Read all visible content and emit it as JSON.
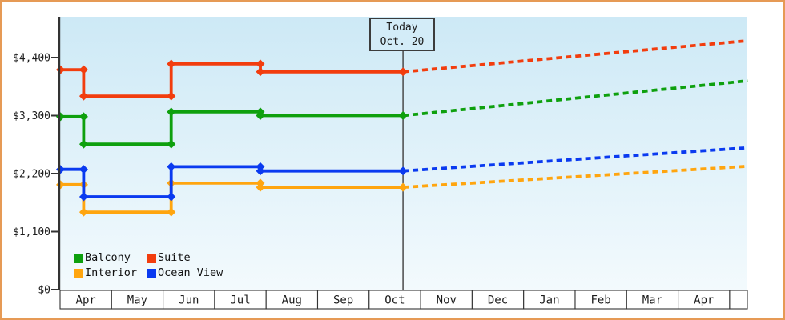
{
  "colors": {
    "frame_border": "#e69a55",
    "plot_bg_top": "#cde9f6",
    "plot_bg_bottom": "#f3fafd",
    "axis": "#333333",
    "text": "#1c1c1c",
    "today_line": "#4a4a4a",
    "month_cell_bg": "#ffffff"
  },
  "today_marker": {
    "line1": "Today",
    "line2": "Oct. 20",
    "month_pos": 6.65
  },
  "chart_data": {
    "type": "line",
    "title": "",
    "xlabel": "",
    "ylabel": "",
    "x_categories": [
      "Apr",
      "May",
      "Jun",
      "Jul",
      "Aug",
      "Sep",
      "Oct",
      "Nov",
      "Dec",
      "Jan",
      "Feb",
      "Mar",
      "Apr"
    ],
    "x_range_months": [
      0,
      13.34
    ],
    "ylim": [
      0,
      5175
    ],
    "grid": false,
    "legend_position": "bottom-left",
    "y_ticks": [
      {
        "label": "$4,400",
        "value": 4400
      },
      {
        "label": "$3,300",
        "value": 3300
      },
      {
        "label": "$2,200",
        "value": 2200
      },
      {
        "label": "$1,100",
        "value": 1100
      },
      {
        "label": "$0",
        "value": 0
      }
    ],
    "today_month_pos": 6.65,
    "forecast_style": "dashed",
    "series": [
      {
        "name": "Balcony",
        "color": "#0ea00e",
        "history": [
          [
            0,
            3280
          ],
          [
            0.45,
            3280
          ],
          [
            0.45,
            2760
          ],
          [
            2.15,
            2760
          ],
          [
            2.15,
            3370
          ],
          [
            3.88,
            3370
          ],
          [
            3.88,
            3300
          ],
          [
            6.65,
            3300
          ]
        ],
        "forecast": [
          [
            6.65,
            3300
          ],
          [
            13.34,
            3960
          ]
        ]
      },
      {
        "name": "Suite",
        "color": "#f23d0e",
        "history": [
          [
            0,
            4170
          ],
          [
            0.45,
            4170
          ],
          [
            0.45,
            3670
          ],
          [
            2.15,
            3670
          ],
          [
            2.15,
            4280
          ],
          [
            3.88,
            4280
          ],
          [
            3.88,
            4130
          ],
          [
            6.65,
            4130
          ]
        ],
        "forecast": [
          [
            6.65,
            4130
          ],
          [
            13.34,
            4720
          ]
        ]
      },
      {
        "name": "Interior",
        "color": "#ffa50f",
        "history": [
          [
            0,
            1990
          ],
          [
            0.45,
            1990
          ],
          [
            0.45,
            1470
          ],
          [
            2.15,
            1470
          ],
          [
            2.15,
            2020
          ],
          [
            3.88,
            2020
          ],
          [
            3.88,
            1940
          ],
          [
            6.65,
            1940
          ]
        ],
        "forecast": [
          [
            6.65,
            1940
          ],
          [
            13.34,
            2340
          ]
        ]
      },
      {
        "name": "Ocean View",
        "color": "#0a3af0",
        "history": [
          [
            0,
            2280
          ],
          [
            0.45,
            2280
          ],
          [
            0.45,
            1760
          ],
          [
            2.15,
            1760
          ],
          [
            2.15,
            2330
          ],
          [
            3.88,
            2330
          ],
          [
            3.88,
            2250
          ],
          [
            6.65,
            2250
          ]
        ],
        "forecast": [
          [
            6.65,
            2250
          ],
          [
            13.34,
            2690
          ]
        ]
      }
    ]
  }
}
